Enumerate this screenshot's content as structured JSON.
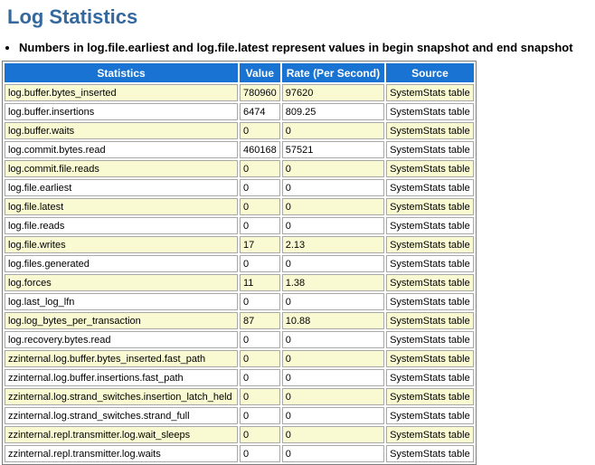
{
  "page": {
    "title": "Log Statistics",
    "note": "Numbers in log.file.earliest and log.file.latest represent values in begin snapshot and end snapshot"
  },
  "colors": {
    "title": "#35699E",
    "header_bg": "#1873D2",
    "header_text": "#FFFFFF",
    "alt_row_bg": "#FAFAD2",
    "cell_border": "#A9A9A9"
  },
  "table": {
    "columns": [
      "Statistics",
      "Value",
      "Rate (Per Second)",
      "Source"
    ],
    "cell_names": [
      "stat-cell",
      "value-cell",
      "rate-cell",
      "source-cell"
    ],
    "rows": [
      [
        "log.buffer.bytes_inserted",
        "780960",
        "97620",
        "SystemStats table"
      ],
      [
        "log.buffer.insertions",
        "6474",
        "809.25",
        "SystemStats table"
      ],
      [
        "log.buffer.waits",
        "0",
        "0",
        "SystemStats table"
      ],
      [
        "log.commit.bytes.read",
        "460168",
        "57521",
        "SystemStats table"
      ],
      [
        "log.commit.file.reads",
        "0",
        "0",
        "SystemStats table"
      ],
      [
        "log.file.earliest",
        "0",
        "0",
        "SystemStats table"
      ],
      [
        "log.file.latest",
        "0",
        "0",
        "SystemStats table"
      ],
      [
        "log.file.reads",
        "0",
        "0",
        "SystemStats table"
      ],
      [
        "log.file.writes",
        "17",
        "2.13",
        "SystemStats table"
      ],
      [
        "log.files.generated",
        "0",
        "0",
        "SystemStats table"
      ],
      [
        "log.forces",
        "11",
        "1.38",
        "SystemStats table"
      ],
      [
        "log.last_log_lfn",
        "0",
        "0",
        "SystemStats table"
      ],
      [
        "log.log_bytes_per_transaction",
        "87",
        "10.88",
        "SystemStats table"
      ],
      [
        "log.recovery.bytes.read",
        "0",
        "0",
        "SystemStats table"
      ],
      [
        "zzinternal.log.buffer.bytes_inserted.fast_path",
        "0",
        "0",
        "SystemStats table"
      ],
      [
        "zzinternal.log.buffer.insertions.fast_path",
        "0",
        "0",
        "SystemStats table"
      ],
      [
        "zzinternal.log.strand_switches.insertion_latch_held",
        "0",
        "0",
        "SystemStats table"
      ],
      [
        "zzinternal.log.strand_switches.strand_full",
        "0",
        "0",
        "SystemStats table"
      ],
      [
        "zzinternal.repl.transmitter.log.wait_sleeps",
        "0",
        "0",
        "SystemStats table"
      ],
      [
        "zzinternal.repl.transmitter.log.waits",
        "0",
        "0",
        "SystemStats table"
      ]
    ]
  }
}
